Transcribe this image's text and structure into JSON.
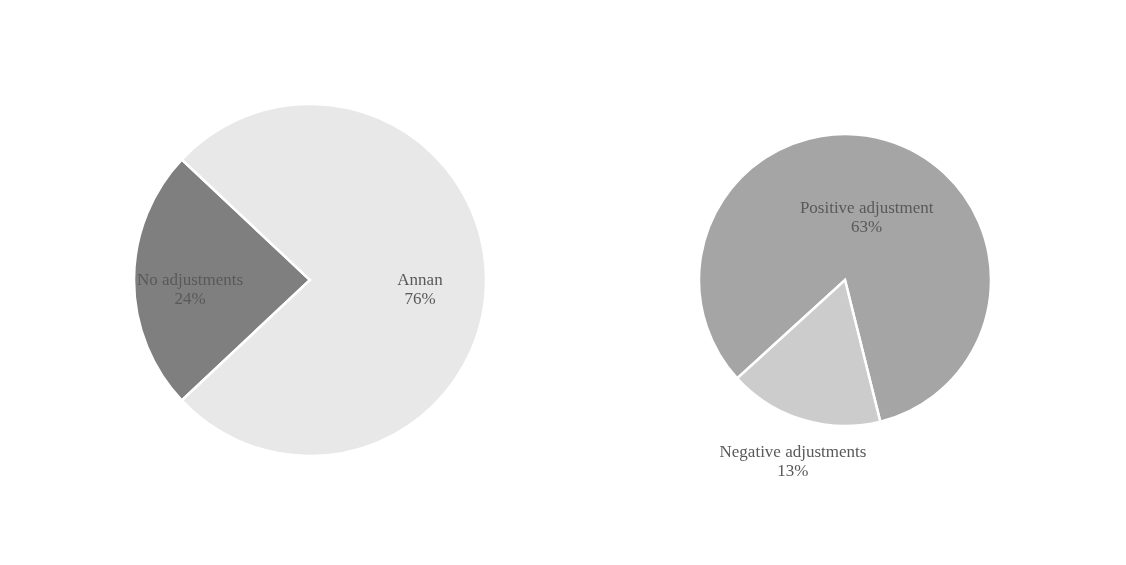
{
  "chart_data": [
    {
      "type": "pie",
      "categories": [
        "No adjustments",
        "Annan"
      ],
      "values": [
        24,
        76
      ],
      "colors": [
        "#7f7f7f",
        "#e8e8e8"
      ],
      "value_labels": [
        "24%",
        "76%"
      ]
    },
    {
      "type": "pie",
      "categories": [
        "Positive adjustment",
        "Negative adjustments"
      ],
      "values": [
        63,
        13
      ],
      "colors": [
        "#a5a5a5",
        "#cccccc"
      ],
      "value_labels": [
        "63%",
        "13%"
      ]
    }
  ]
}
